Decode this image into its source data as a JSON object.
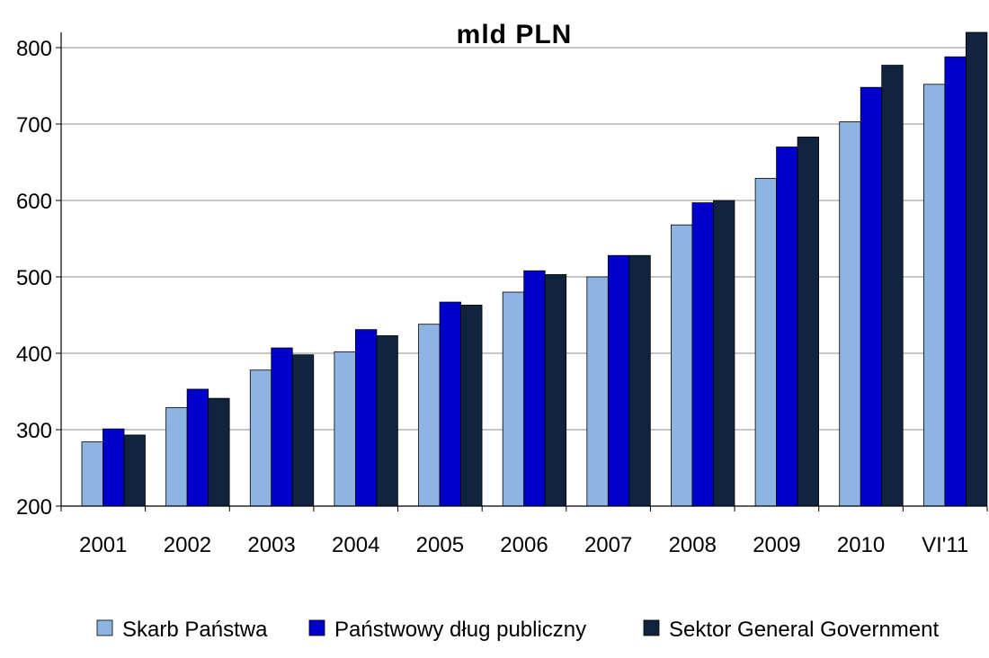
{
  "chart_data": {
    "type": "bar",
    "title": "mld PLN",
    "xlabel": "",
    "ylabel": "",
    "ylim": [
      200,
      820
    ],
    "yticks": [
      200,
      300,
      400,
      500,
      600,
      700,
      800
    ],
    "grid": true,
    "legend_position": "bottom",
    "categories": [
      "2001",
      "2002",
      "2003",
      "2004",
      "2005",
      "2006",
      "2007",
      "2008",
      "2009",
      "2010",
      "VI'11"
    ],
    "series": [
      {
        "name": "Skarb Państwa",
        "color": "#8DB4E2",
        "values": [
          284,
          329,
          378,
          402,
          438,
          480,
          500,
          568,
          629,
          703,
          752
        ]
      },
      {
        "name": "Państwowy dług publiczny",
        "color": "#0000CC",
        "values": [
          301,
          353,
          407,
          431,
          467,
          508,
          528,
          597,
          670,
          748,
          788
        ]
      },
      {
        "name": "Sektor General Government",
        "color": "#10243E",
        "values": [
          293,
          341,
          398,
          423,
          463,
          503,
          528,
          600,
          683,
          777,
          820
        ]
      }
    ]
  }
}
